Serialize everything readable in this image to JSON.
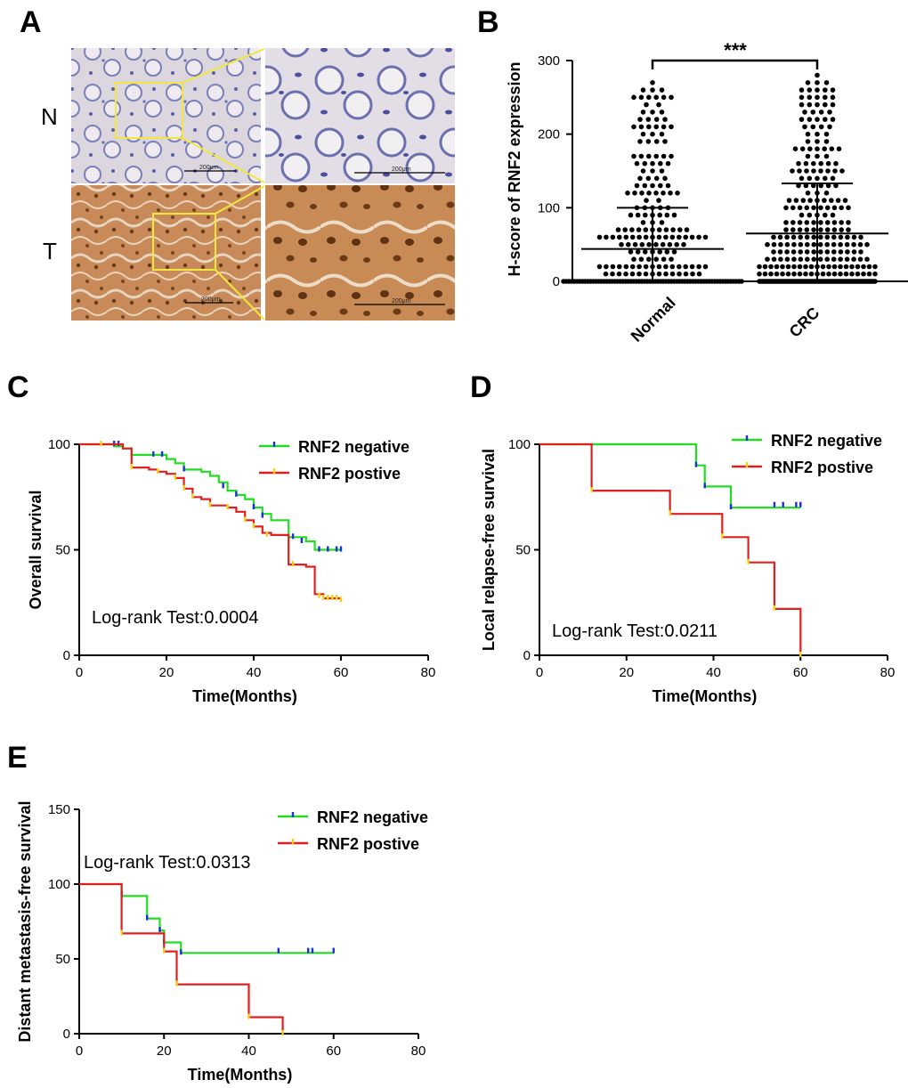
{
  "panels": {
    "A": "A",
    "B": "B",
    "C": "C",
    "D": "D",
    "E": "E"
  },
  "histology": {
    "row_labels": [
      "N",
      "T"
    ],
    "scale_labels": [
      "200μm",
      "200μm",
      "200μm",
      "200μm"
    ],
    "colors": {
      "normal_bg": "#d9d3dc",
      "normal_nuclei": "#5b5fa6",
      "tumor_bg": "#c98a55",
      "tumor_nuclei": "#6a3a17",
      "zoom_box": "#f2e73c"
    }
  },
  "chart_data": [
    {
      "id": "B",
      "type": "scatter",
      "categories": [
        "Normal",
        "CRC"
      ],
      "ylabel": "H-score of RNF2 expression",
      "ylim": [
        0,
        300
      ],
      "yticks": [
        0,
        100,
        200,
        300
      ],
      "significance": "***",
      "series": [
        {
          "name": "Normal",
          "mean": 44,
          "sd": 56,
          "max": 270,
          "min": 0
        },
        {
          "name": "CRC",
          "mean": 65,
          "sd": 68,
          "max": 280,
          "min": 0
        }
      ]
    },
    {
      "id": "C",
      "type": "line",
      "xlabel": "Time(Months)",
      "ylabel": "Overall survival",
      "xlim": [
        0,
        80
      ],
      "ylim": [
        0,
        100
      ],
      "xticks": [
        0,
        20,
        40,
        60,
        80
      ],
      "yticks": [
        0,
        50,
        100
      ],
      "annotation": "Log-rank Test:0.0004",
      "series": [
        {
          "name": "RNF2 negative",
          "color": "#22dd22",
          "censor_color": "#1a2fd6",
          "steps": [
            [
              0,
              100
            ],
            [
              8,
              99
            ],
            [
              10,
              98
            ],
            [
              12,
              95
            ],
            [
              18,
              95
            ],
            [
              20,
              93
            ],
            [
              22,
              91
            ],
            [
              24,
              88
            ],
            [
              28,
              87
            ],
            [
              30,
              85
            ],
            [
              32,
              82
            ],
            [
              34,
              78
            ],
            [
              36,
              76
            ],
            [
              38,
              74
            ],
            [
              40,
              70
            ],
            [
              42,
              67
            ],
            [
              44,
              64
            ],
            [
              48,
              56
            ],
            [
              52,
              54
            ],
            [
              54,
              50
            ],
            [
              60,
              50
            ]
          ],
          "censors": [
            [
              8,
              100
            ],
            [
              9,
              100
            ],
            [
              17,
              95
            ],
            [
              19,
              95
            ],
            [
              24,
              88
            ],
            [
              33,
              80
            ],
            [
              36,
              76
            ],
            [
              40,
              70
            ],
            [
              42,
              66
            ],
            [
              49,
              56
            ],
            [
              51,
              54
            ],
            [
              55,
              50
            ],
            [
              57,
              50
            ],
            [
              59,
              50
            ],
            [
              60,
              50
            ]
          ]
        },
        {
          "name": "RNF2 postive",
          "color": "#e02020",
          "censor_color": "#f2d21b",
          "steps": [
            [
              0,
              100
            ],
            [
              10,
              98
            ],
            [
              12,
              89
            ],
            [
              16,
              88
            ],
            [
              18,
              87
            ],
            [
              20,
              86
            ],
            [
              22,
              84
            ],
            [
              24,
              79
            ],
            [
              26,
              75
            ],
            [
              28,
              74
            ],
            [
              30,
              71
            ],
            [
              34,
              70
            ],
            [
              36,
              68
            ],
            [
              38,
              64
            ],
            [
              40,
              61
            ],
            [
              42,
              58
            ],
            [
              44,
              57
            ],
            [
              48,
              43
            ],
            [
              52,
              42
            ],
            [
              54,
              29
            ],
            [
              56,
              27
            ],
            [
              60,
              26
            ]
          ],
          "censors": [
            [
              5,
              100
            ],
            [
              12,
              89
            ],
            [
              18,
              87
            ],
            [
              22,
              84
            ],
            [
              24,
              79
            ],
            [
              26,
              75
            ],
            [
              30,
              71
            ],
            [
              34,
              70
            ],
            [
              38,
              64
            ],
            [
              40,
              61
            ],
            [
              43,
              57
            ],
            [
              49,
              43
            ],
            [
              55,
              28
            ],
            [
              56,
              27
            ],
            [
              57,
              27
            ],
            [
              58,
              27
            ],
            [
              59,
              27
            ],
            [
              60,
              26
            ]
          ]
        }
      ]
    },
    {
      "id": "D",
      "type": "line",
      "xlabel": "Time(Months)",
      "ylabel": "Local relapse-free survival",
      "xlim": [
        0,
        80
      ],
      "ylim": [
        0,
        100
      ],
      "xticks": [
        0,
        20,
        40,
        60,
        80
      ],
      "yticks": [
        0,
        50,
        100
      ],
      "annotation": "Log-rank Test:0.0211",
      "series": [
        {
          "name": "RNF2 negative",
          "color": "#22dd22",
          "censor_color": "#1a2fd6",
          "steps": [
            [
              0,
              100
            ],
            [
              36,
              100
            ],
            [
              36,
              90
            ],
            [
              38,
              90
            ],
            [
              38,
              80
            ],
            [
              44,
              80
            ],
            [
              44,
              70
            ],
            [
              60,
              70
            ]
          ],
          "censors": [
            [
              36,
              90
            ],
            [
              38,
              80
            ],
            [
              44,
              70
            ],
            [
              54,
              71
            ],
            [
              56,
              71
            ],
            [
              59,
              71
            ],
            [
              60,
              71
            ]
          ]
        },
        {
          "name": "RNF2 postive",
          "color": "#e02020",
          "censor_color": "#f2d21b",
          "steps": [
            [
              0,
              100
            ],
            [
              12,
              100
            ],
            [
              12,
              78
            ],
            [
              30,
              78
            ],
            [
              30,
              67
            ],
            [
              42,
              67
            ],
            [
              42,
              56
            ],
            [
              48,
              56
            ],
            [
              48,
              44
            ],
            [
              54,
              44
            ],
            [
              54,
              22
            ],
            [
              60,
              22
            ],
            [
              60,
              0
            ]
          ],
          "censors": [
            [
              12,
              78
            ],
            [
              30,
              67
            ],
            [
              42,
              56
            ],
            [
              48,
              44
            ],
            [
              54,
              22
            ],
            [
              60,
              0
            ]
          ]
        }
      ]
    },
    {
      "id": "E",
      "type": "line",
      "xlabel": "Time(Months)",
      "ylabel": "Distant metastasis-free survival",
      "xlim": [
        0,
        80
      ],
      "ylim": [
        0,
        150
      ],
      "xticks": [
        0,
        20,
        40,
        60,
        80
      ],
      "yticks": [
        0,
        50,
        100,
        150
      ],
      "annotation": "Log-rank Test:0.0313",
      "series": [
        {
          "name": "RNF2 negative",
          "color": "#22dd22",
          "censor_color": "#1a2fd6",
          "steps": [
            [
              0,
              100
            ],
            [
              10,
              100
            ],
            [
              10,
              92
            ],
            [
              16,
              92
            ],
            [
              16,
              77
            ],
            [
              19,
              77
            ],
            [
              19,
              69
            ],
            [
              20,
              69
            ],
            [
              20,
              61
            ],
            [
              24,
              61
            ],
            [
              24,
              54
            ],
            [
              60,
              54
            ]
          ],
          "censors": [
            [
              10,
              93
            ],
            [
              16,
              77
            ],
            [
              19,
              69
            ],
            [
              20,
              61
            ],
            [
              24,
              54
            ],
            [
              47,
              55
            ],
            [
              54,
              55
            ],
            [
              55,
              55
            ],
            [
              60,
              55
            ]
          ]
        },
        {
          "name": "RNF2 postive",
          "color": "#e02020",
          "censor_color": "#f2d21b",
          "steps": [
            [
              0,
              100
            ],
            [
              10,
              100
            ],
            [
              10,
              67
            ],
            [
              20,
              67
            ],
            [
              20,
              55
            ],
            [
              23,
              55
            ],
            [
              23,
              33
            ],
            [
              40,
              33
            ],
            [
              40,
              11
            ],
            [
              48,
              11
            ],
            [
              48,
              0
            ]
          ],
          "censors": [
            [
              10,
              67
            ],
            [
              20,
              55
            ],
            [
              23,
              33
            ],
            [
              40,
              11
            ],
            [
              48,
              0
            ]
          ]
        }
      ]
    }
  ]
}
